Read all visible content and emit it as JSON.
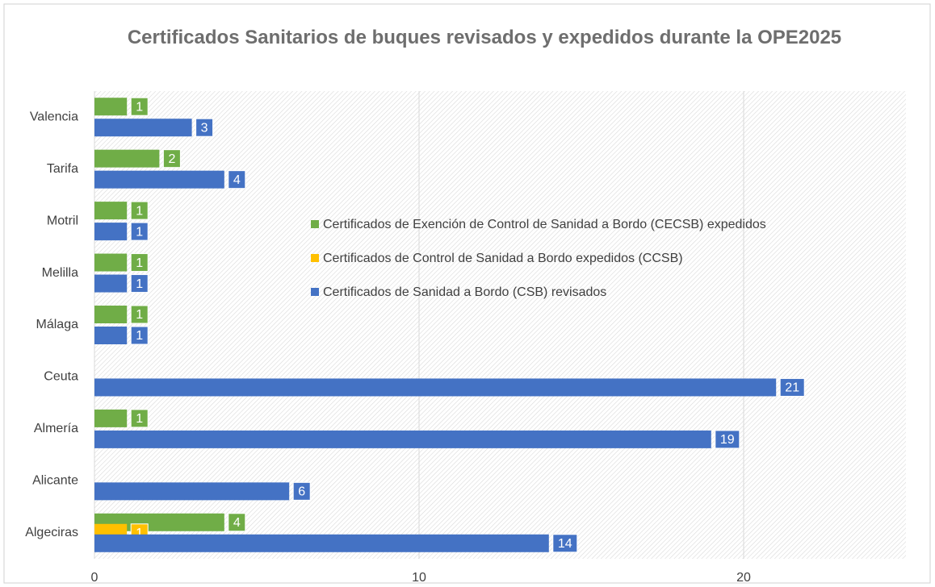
{
  "chart_data": {
    "type": "bar",
    "orientation": "horizontal",
    "title": "Certificados Sanitarios de buques revisados y expedidos durante la OPE2025",
    "categories": [
      "Algeciras",
      "Alicante",
      "Almería",
      "Ceuta",
      "Málaga",
      "Melilla",
      "Motril",
      "Tarifa",
      "Valencia"
    ],
    "series": [
      {
        "name": "Certificados de Exención de Control de Sanidad a Bordo (CECSB) expedidos",
        "color": "#70ad47",
        "values": [
          4,
          null,
          1,
          null,
          1,
          1,
          1,
          2,
          1
        ]
      },
      {
        "name": "Certificados de Control de Sanidad a Bordo expedidos (CCSB)",
        "color": "#ffc000",
        "values": [
          1,
          null,
          null,
          null,
          null,
          null,
          null,
          null,
          null
        ]
      },
      {
        "name": "Certificados de Sanidad a Bordo (CSB) revisados",
        "color": "#4472c4",
        "values": [
          14,
          6,
          19,
          21,
          1,
          1,
          1,
          4,
          3
        ]
      }
    ],
    "xlim": [
      0,
      25
    ],
    "xticks": [
      0,
      10,
      20
    ],
    "grid": true,
    "legend": "center",
    "data_labels": true
  }
}
